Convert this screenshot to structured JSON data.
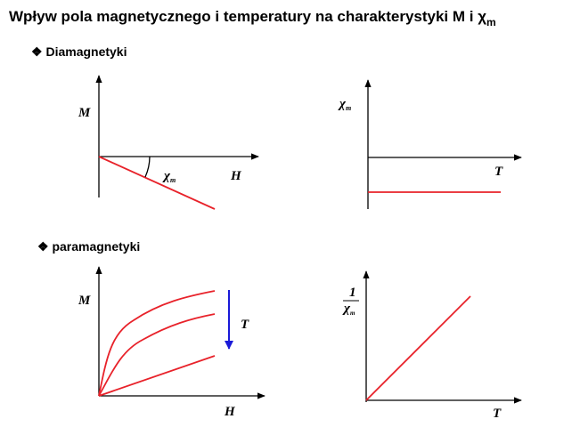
{
  "title": {
    "text": "Wpływ pola magnetycznego i temperatury na charakterystyki M i ",
    "symbol": "χ",
    "subscript": "m"
  },
  "sections": [
    {
      "label": "Diamagnetyki",
      "diagrams": [
        {
          "y_label": "M",
          "x_label": "H",
          "angle_label": {
            "symbol": "χ",
            "subscript": "m"
          }
        },
        {
          "y_label": {
            "symbol": "χ",
            "subscript": "m"
          },
          "x_label": "T"
        }
      ]
    },
    {
      "label": "paramagnetyki",
      "diagrams": [
        {
          "y_label": "M",
          "x_label": "H",
          "arrow_label": "T"
        },
        {
          "y_label": {
            "numerator": "1",
            "symbol": "χ",
            "subscript": "m"
          },
          "x_label": "T"
        }
      ]
    }
  ]
}
